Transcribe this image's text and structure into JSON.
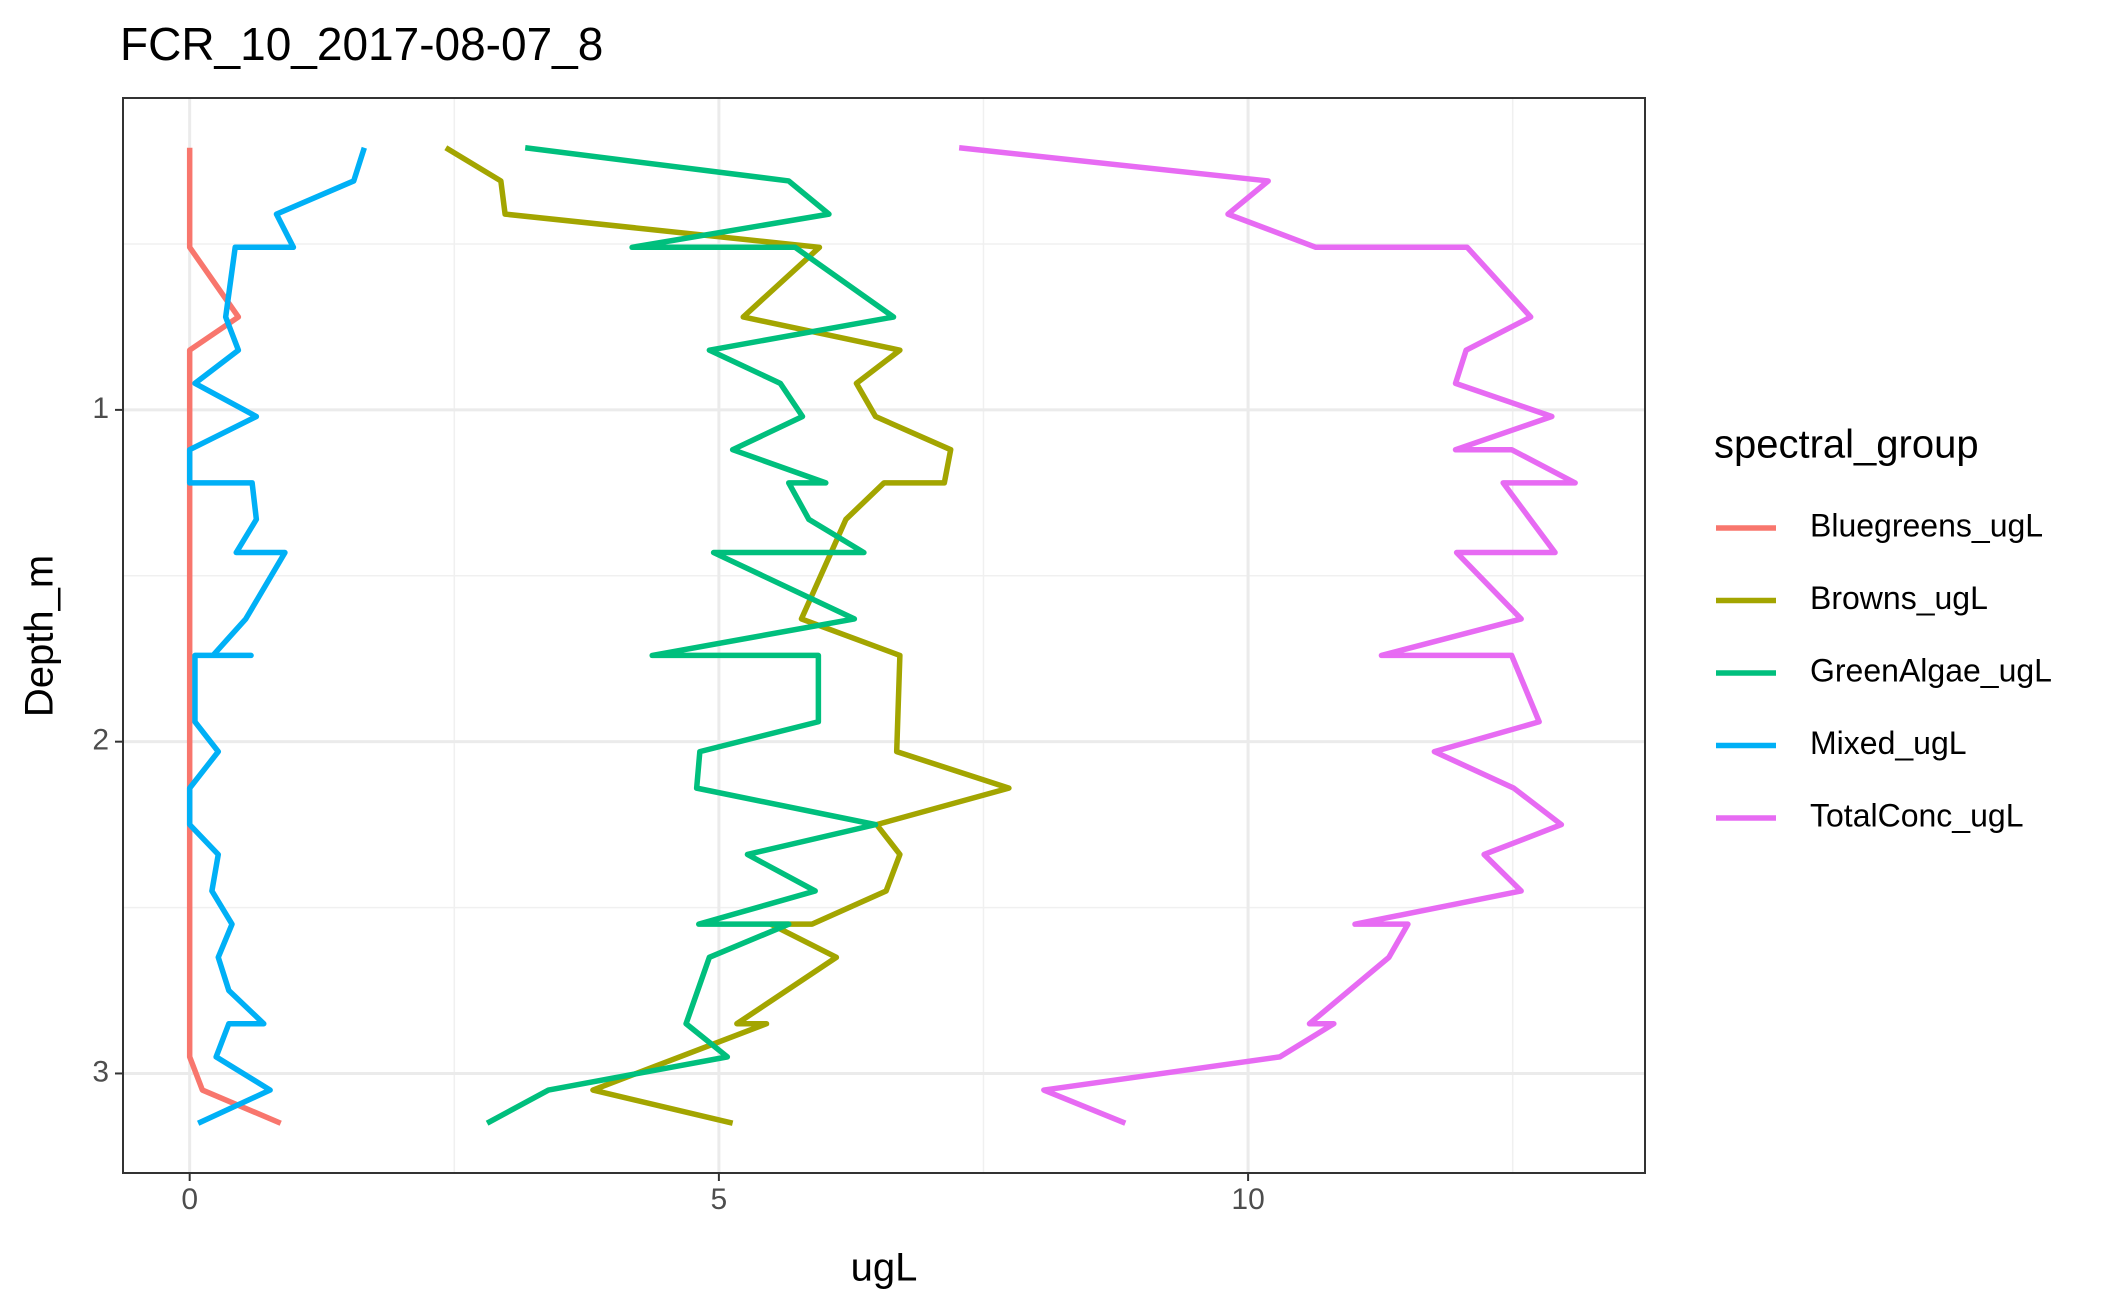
{
  "chart_data": {
    "type": "path",
    "title": "FCR_10_2017-08-07_8",
    "x_label": "ugL",
    "y_label": "Depth_m",
    "legend_title": "spectral_group",
    "xlim": [
      -0.63,
      13.75
    ],
    "xticks": [
      0,
      5,
      10
    ],
    "xminor": [
      2.5,
      7.5,
      12.5
    ],
    "ylim": [
      0.06,
      3.3
    ],
    "yticks": [
      1,
      2,
      3
    ],
    "yminor": [
      0.5,
      1.5,
      2.5
    ],
    "y_reversed": true,
    "grid": true,
    "legend": "right",
    "series": [
      {
        "name": "Bluegreens_ugL",
        "color": "#F8766D",
        "x": [
          0,
          0,
          0.46,
          0,
          0,
          0.12,
          0.86
        ],
        "y": [
          0.21,
          0.51,
          0.72,
          0.82,
          2.95,
          3.05,
          3.15
        ]
      },
      {
        "name": "Browns_ugL",
        "color": "#A3A500",
        "x": [
          2.42,
          2.94,
          2.98,
          5.95,
          5.23,
          6.71,
          6.3,
          6.48,
          7.19,
          7.13,
          6.56,
          6.2,
          5.78,
          6.71,
          6.68,
          7.74,
          6.49,
          6.71,
          6.58,
          5.88,
          5.49,
          6.11,
          5.17,
          5.45,
          3.81,
          5.13
        ],
        "y": [
          0.21,
          0.31,
          0.41,
          0.51,
          0.72,
          0.82,
          0.92,
          1.02,
          1.12,
          1.22,
          1.22,
          1.33,
          1.63,
          1.74,
          2.03,
          2.14,
          2.25,
          2.34,
          2.45,
          2.55,
          2.55,
          2.65,
          2.85,
          2.85,
          3.05,
          3.15
        ]
      },
      {
        "name": "GreenAlgae_ugL",
        "color": "#00BF7D",
        "x": [
          3.17,
          5.66,
          6.04,
          4.18,
          5.72,
          6.65,
          4.91,
          5.58,
          5.79,
          5.13,
          6.01,
          5.66,
          5.85,
          6.37,
          4.95,
          6.28,
          4.37,
          5.94,
          5.94,
          4.82,
          4.79,
          6.48,
          5.27,
          5.91,
          4.81,
          5.66,
          4.91,
          4.69,
          5.08,
          3.39,
          2.81
        ],
        "y": [
          0.21,
          0.31,
          0.41,
          0.51,
          0.51,
          0.72,
          0.82,
          0.92,
          1.02,
          1.12,
          1.22,
          1.22,
          1.33,
          1.43,
          1.43,
          1.63,
          1.74,
          1.74,
          1.94,
          2.03,
          2.14,
          2.25,
          2.34,
          2.45,
          2.55,
          2.55,
          2.65,
          2.85,
          2.95,
          3.05,
          3.15
        ]
      },
      {
        "name": "Mixed_ugL",
        "color": "#00B0F6",
        "x": [
          1.65,
          1.55,
          0.82,
          0.98,
          0.43,
          0.34,
          0.46,
          0.05,
          0.63,
          0,
          0,
          0.59,
          0.63,
          0.44,
          0.9,
          0.53,
          0.22,
          0.58,
          0.05,
          0.05,
          0.27,
          0,
          0,
          0.27,
          0.21,
          0.4,
          0.27,
          0.37,
          0.7,
          0.37,
          0.25,
          0.76,
          0.08
        ],
        "y": [
          0.21,
          0.31,
          0.41,
          0.51,
          0.51,
          0.72,
          0.82,
          0.92,
          1.02,
          1.12,
          1.22,
          1.22,
          1.33,
          1.43,
          1.43,
          1.63,
          1.74,
          1.74,
          1.74,
          1.94,
          2.03,
          2.14,
          2.25,
          2.34,
          2.45,
          2.55,
          2.65,
          2.75,
          2.85,
          2.85,
          2.95,
          3.05,
          3.15
        ]
      },
      {
        "name": "TotalConc_ugL",
        "color": "#E76BF3",
        "x": [
          7.27,
          10.19,
          9.81,
          10.64,
          12.07,
          12.67,
          12.06,
          11.96,
          12.87,
          11.96,
          12.49,
          13.09,
          12.41,
          12.9,
          11.97,
          12.58,
          11.26,
          12.49,
          12.75,
          11.76,
          12.51,
          12.96,
          12.23,
          12.58,
          11.01,
          11.51,
          11.33,
          10.58,
          10.81,
          10.3,
          8.07,
          8.84
        ],
        "y": [
          0.21,
          0.31,
          0.41,
          0.51,
          0.51,
          0.72,
          0.82,
          0.92,
          1.02,
          1.12,
          1.12,
          1.22,
          1.22,
          1.43,
          1.43,
          1.63,
          1.74,
          1.74,
          1.94,
          2.03,
          2.14,
          2.25,
          2.34,
          2.45,
          2.55,
          2.55,
          2.65,
          2.85,
          2.85,
          2.95,
          3.05,
          3.15
        ]
      }
    ]
  }
}
